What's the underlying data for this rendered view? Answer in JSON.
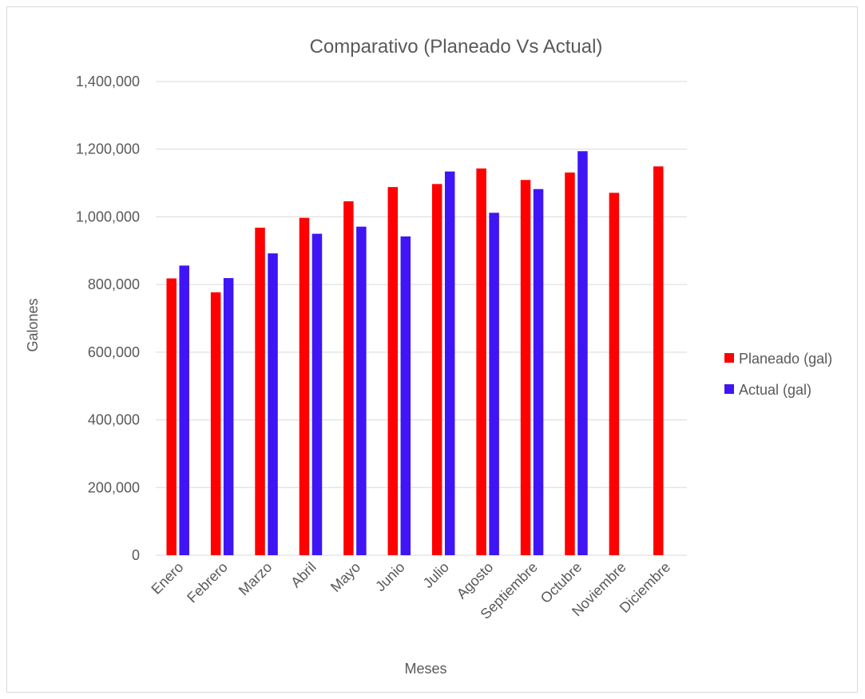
{
  "chart_data": {
    "type": "bar",
    "title": "Comparativo (Planeado Vs Actual)",
    "xlabel": "Meses",
    "ylabel": "Galones",
    "ylim": [
      0,
      1400000
    ],
    "yticks": [
      0,
      200000,
      400000,
      600000,
      800000,
      1000000,
      1200000,
      1400000
    ],
    "ytick_labels": [
      "0",
      "200,000",
      "400,000",
      "600,000",
      "800,000",
      "1,000,000",
      "1,200,000",
      "1,400,000"
    ],
    "grid": true,
    "legend_position": "right",
    "categories": [
      "Enero",
      "Febrero",
      "Marzo",
      "Abril",
      "Mayo",
      "Junio",
      "Julio",
      "Agosto",
      "Septiembre",
      "Octubre",
      "Noviembre",
      "Diciembre"
    ],
    "series": [
      {
        "name": "Planeado (gal)",
        "color": "#ff0000",
        "values": [
          818000,
          777000,
          968000,
          997000,
          1046000,
          1088000,
          1097000,
          1143000,
          1109000,
          1131000,
          1071000,
          1149000
        ]
      },
      {
        "name": "Actual (gal)",
        "color": "#3f15f5",
        "values": [
          856000,
          819000,
          892000,
          950000,
          971000,
          942000,
          1134000,
          1012000,
          1082000,
          1194000,
          null,
          null
        ]
      }
    ]
  }
}
